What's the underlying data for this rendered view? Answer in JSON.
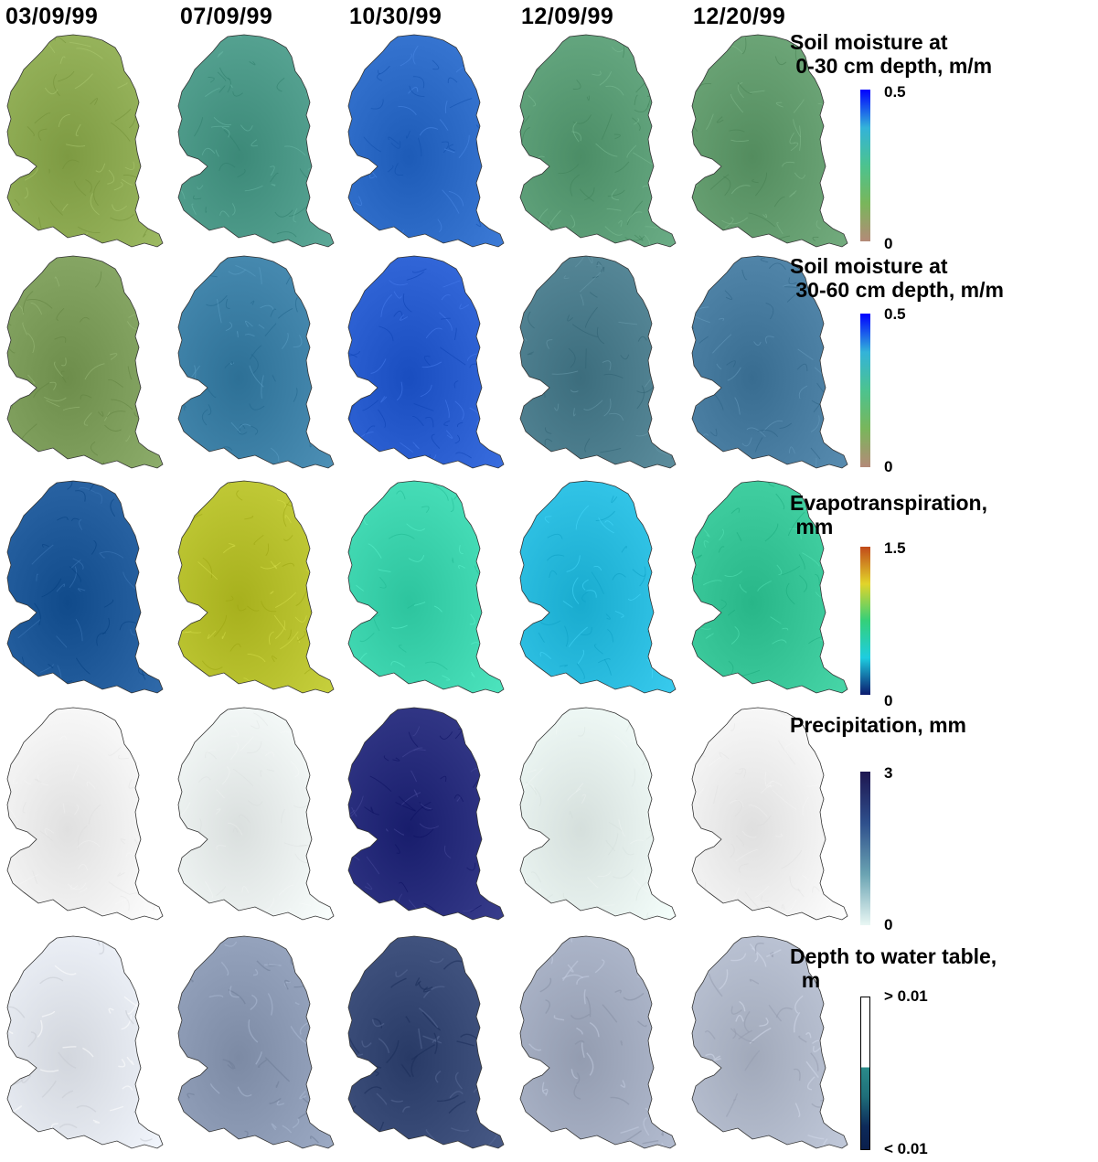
{
  "dates": [
    "03/09/99",
    "07/09/99",
    "10/30/99",
    "12/09/99",
    "12/20/99"
  ],
  "variables": [
    {
      "title_line1": "Soil moisture at",
      "title_line2": " 0-30 cm depth, m/m",
      "max_label": "0.5",
      "min_label": "0",
      "colormap": [
        "#0000ff",
        "#33b3d9",
        "#4cc38f",
        "#79b65b",
        "#b48a78"
      ],
      "panel_colors": [
        "#8fac54",
        "#4e9b8a",
        "#2f6dc9",
        "#5d9f78",
        "#659e70"
      ]
    },
    {
      "title_line1": "Soil moisture at",
      "title_line2": " 30-60 cm depth, m/m",
      "max_label": "0.5",
      "min_label": "0",
      "colormap": [
        "#0000ff",
        "#33b3d9",
        "#4cc38f",
        "#79b65b",
        "#b48a78"
      ],
      "panel_colors": [
        "#7f9f5d",
        "#3f82a8",
        "#2b5fd1",
        "#4e7f8f",
        "#4a7ea2"
      ]
    },
    {
      "title_line1": "Evapotranspiration,",
      "title_line2": " mm",
      "max_label": "1.5",
      "min_label": "0",
      "colormap": [
        "#c14a1a",
        "#e2d42a",
        "#34d07a",
        "#1ecde0",
        "#0b1b6e"
      ],
      "panel_colors": [
        "#225c9c",
        "#b9c22f",
        "#3fd6b0",
        "#2bbde0",
        "#3ac89a"
      ]
    },
    {
      "title_line1": "Precipitation, mm",
      "title_line2": "",
      "max_label": "3",
      "min_label": "0",
      "colormap": [
        "#1e1650",
        "#2e4f8c",
        "#6aa3b2",
        "#e9f7f4"
      ],
      "panel_colors": [
        "#f2f2f2",
        "#ecf1f0",
        "#2a2f7e",
        "#e7f1ee",
        "#f1f1f1"
      ]
    },
    {
      "title_line1": "Depth to water table,",
      "title_line2": "  m",
      "max_label": "> 0.01",
      "min_label": "< 0.01",
      "colormap": [
        "#ffffff",
        "#ffffff",
        "#2a8c8a",
        "#0d2a5a",
        "#0a1f4c"
      ],
      "panel_colors": [
        "#e4e8ef",
        "#8e9cb6",
        "#3a4c78",
        "#a5aec2",
        "#b3bbcc"
      ]
    }
  ]
}
